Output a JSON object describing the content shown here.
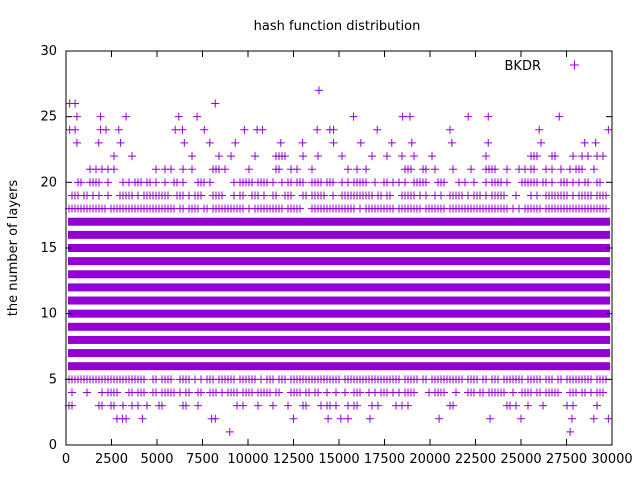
{
  "chart_data": {
    "type": "scatter",
    "title": "hash function distribution",
    "xlabel": "",
    "ylabel": "the number of layers",
    "xlim": [
      0,
      30000
    ],
    "ylim": [
      0,
      30
    ],
    "x_ticks": [
      "0",
      "2500",
      "5000",
      "7500",
      "10000",
      "12500",
      "15000",
      "17500",
      "20000",
      "22500",
      "25000",
      "27500",
      "30000"
    ],
    "y_ticks": [
      "0",
      "5",
      "10",
      "15",
      "20",
      "25",
      "30"
    ],
    "grid": false,
    "legend_position": "top-right",
    "series": [
      {
        "name": "BKDR",
        "color": "#9400d3",
        "marker": "plus",
        "dense_bands": [
          {
            "y": 4,
            "coverage": 0.6
          },
          {
            "y": 5,
            "coverage": 0.85
          },
          {
            "y": 6,
            "coverage": 0.97
          },
          {
            "y": 7,
            "coverage": 1.0
          },
          {
            "y": 8,
            "coverage": 1.0
          },
          {
            "y": 9,
            "coverage": 1.0
          },
          {
            "y": 10,
            "coverage": 1.0
          },
          {
            "y": 11,
            "coverage": 1.0
          },
          {
            "y": 12,
            "coverage": 1.0
          },
          {
            "y": 13,
            "coverage": 1.0
          },
          {
            "y": 14,
            "coverage": 1.0
          },
          {
            "y": 15,
            "coverage": 1.0
          },
          {
            "y": 16,
            "coverage": 0.98
          },
          {
            "y": 17,
            "coverage": 0.95
          },
          {
            "y": 18,
            "coverage": 0.85
          },
          {
            "y": 19,
            "coverage": 0.7
          },
          {
            "y": 20,
            "coverage": 0.5
          },
          {
            "y": 21,
            "coverage": 0.3
          },
          {
            "y": 22,
            "coverage": 0.12
          },
          {
            "y": 3,
            "coverage": 0.25
          }
        ],
        "points": [
          [
            9000,
            1
          ],
          [
            27700,
            1
          ],
          [
            2800,
            2
          ],
          [
            3100,
            2
          ],
          [
            3300,
            2
          ],
          [
            4200,
            2
          ],
          [
            8000,
            2
          ],
          [
            8200,
            2
          ],
          [
            12500,
            2
          ],
          [
            14400,
            2
          ],
          [
            15100,
            2
          ],
          [
            15500,
            2
          ],
          [
            16700,
            2
          ],
          [
            20500,
            2
          ],
          [
            23300,
            2
          ],
          [
            25000,
            2
          ],
          [
            27800,
            2
          ],
          [
            29000,
            2
          ],
          [
            29800,
            2
          ],
          [
            19000,
            23
          ],
          [
            21200,
            23
          ],
          [
            23200,
            23
          ],
          [
            26100,
            23
          ],
          [
            28500,
            23
          ],
          [
            29100,
            23
          ],
          [
            600,
            23
          ],
          [
            1800,
            23
          ],
          [
            3000,
            23
          ],
          [
            6500,
            23
          ],
          [
            7900,
            23
          ],
          [
            9300,
            23
          ],
          [
            11800,
            23
          ],
          [
            13000,
            23
          ],
          [
            14700,
            23
          ],
          [
            16200,
            23
          ],
          [
            17900,
            23
          ],
          [
            200,
            26
          ],
          [
            500,
            26
          ],
          [
            8200,
            26
          ],
          [
            200,
            24
          ],
          [
            500,
            24
          ],
          [
            1900,
            24
          ],
          [
            2200,
            24
          ],
          [
            2900,
            24
          ],
          [
            6000,
            24
          ],
          [
            6400,
            24
          ],
          [
            7600,
            24
          ],
          [
            9800,
            24
          ],
          [
            10500,
            24
          ],
          [
            10800,
            24
          ],
          [
            13800,
            24
          ],
          [
            14500,
            24
          ],
          [
            14700,
            24
          ],
          [
            17100,
            24
          ],
          [
            21100,
            24
          ],
          [
            26000,
            24
          ],
          [
            29800,
            24
          ],
          [
            600,
            25
          ],
          [
            1900,
            25
          ],
          [
            3300,
            25
          ],
          [
            6200,
            25
          ],
          [
            7200,
            25
          ],
          [
            15800,
            25
          ],
          [
            18500,
            25
          ],
          [
            18900,
            25
          ],
          [
            22100,
            25
          ],
          [
            23200,
            25
          ],
          [
            27100,
            25
          ],
          [
            13900,
            27
          ]
        ]
      }
    ]
  }
}
